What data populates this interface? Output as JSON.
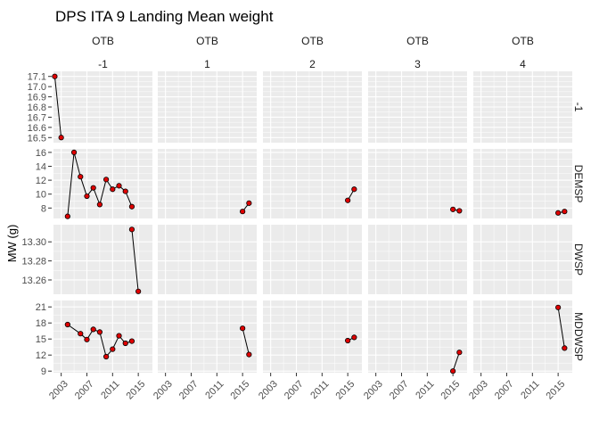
{
  "chart_data": {
    "type": "line",
    "title": "DPS ITA 9 Landing Mean weight",
    "xlabel": "",
    "ylabel": "MW (g)",
    "colors": {
      "panel_bg": "#ebebeb",
      "grid": "#ffffff",
      "line": "#000000",
      "point": "#e00000"
    },
    "col_facets": [
      {
        "top": "OTB",
        "bottom": "-1"
      },
      {
        "top": "OTB",
        "bottom": "1"
      },
      {
        "top": "OTB",
        "bottom": "2"
      },
      {
        "top": "OTB",
        "bottom": "3"
      },
      {
        "top": "OTB",
        "bottom": "4"
      }
    ],
    "row_facets": [
      "-1",
      "DEMSP",
      "DWSP",
      "MDDWSP"
    ],
    "x_ticks": [
      "2003",
      "2007",
      "2011",
      "2015"
    ],
    "xlim": [
      2001.8,
      2017.2
    ],
    "rows": [
      {
        "ylim": [
          16.45,
          17.15
        ],
        "y_ticks": [
          "16.5",
          "16.6",
          "16.7",
          "16.8",
          "16.9",
          "17.0",
          "17.1"
        ],
        "series": [
          {
            "x": [
              2002,
              2003
            ],
            "y": [
              17.1,
              16.5
            ]
          },
          {
            "x": [],
            "y": []
          },
          {
            "x": [],
            "y": []
          },
          {
            "x": [],
            "y": []
          },
          {
            "x": [],
            "y": []
          }
        ]
      },
      {
        "ylim": [
          6.5,
          16.5
        ],
        "y_ticks": [
          "8",
          "10",
          "12",
          "14",
          "16"
        ],
        "series": [
          {
            "x": [
              2004,
              2005,
              2006,
              2007,
              2008,
              2009,
              2010,
              2011,
              2012,
              2013,
              2014
            ],
            "y": [
              6.8,
              16.0,
              12.5,
              9.7,
              10.9,
              8.5,
              12.1,
              10.7,
              11.2,
              10.4,
              8.2
            ]
          },
          {
            "x": [
              2015,
              2016
            ],
            "y": [
              7.5,
              8.7
            ]
          },
          {
            "x": [
              2015,
              2016
            ],
            "y": [
              9.1,
              10.7
            ]
          },
          {
            "x": [
              2015,
              2016
            ],
            "y": [
              7.8,
              7.6
            ]
          },
          {
            "x": [
              2015,
              2016
            ],
            "y": [
              7.3,
              7.5
            ]
          }
        ]
      },
      {
        "ylim": [
          13.245,
          13.318
        ],
        "y_ticks": [
          "13.26",
          "13.28",
          "13.30"
        ],
        "series": [
          {
            "x": [
              2014,
              2015
            ],
            "y": [
              13.313,
              13.248
            ]
          },
          {
            "x": [],
            "y": []
          },
          {
            "x": [],
            "y": []
          },
          {
            "x": [],
            "y": []
          },
          {
            "x": [],
            "y": []
          }
        ]
      },
      {
        "ylim": [
          8.7,
          22.2
        ],
        "y_ticks": [
          "9",
          "12",
          "15",
          "18",
          "21"
        ],
        "series": [
          {
            "x": [
              2004,
              2006,
              2007,
              2008,
              2009,
              2010,
              2011,
              2012,
              2013,
              2014
            ],
            "y": [
              17.7,
              16.0,
              14.9,
              16.8,
              16.3,
              11.7,
              13.1,
              15.6,
              14.2,
              14.6
            ]
          },
          {
            "x": [
              2015,
              2016
            ],
            "y": [
              17.0,
              12.1
            ]
          },
          {
            "x": [
              2015,
              2016
            ],
            "y": [
              14.7,
              15.3
            ]
          },
          {
            "x": [
              2015,
              2016
            ],
            "y": [
              9.0,
              12.5
            ]
          },
          {
            "x": [
              2015,
              2016
            ],
            "y": [
              20.9,
              13.3
            ]
          }
        ]
      }
    ]
  }
}
